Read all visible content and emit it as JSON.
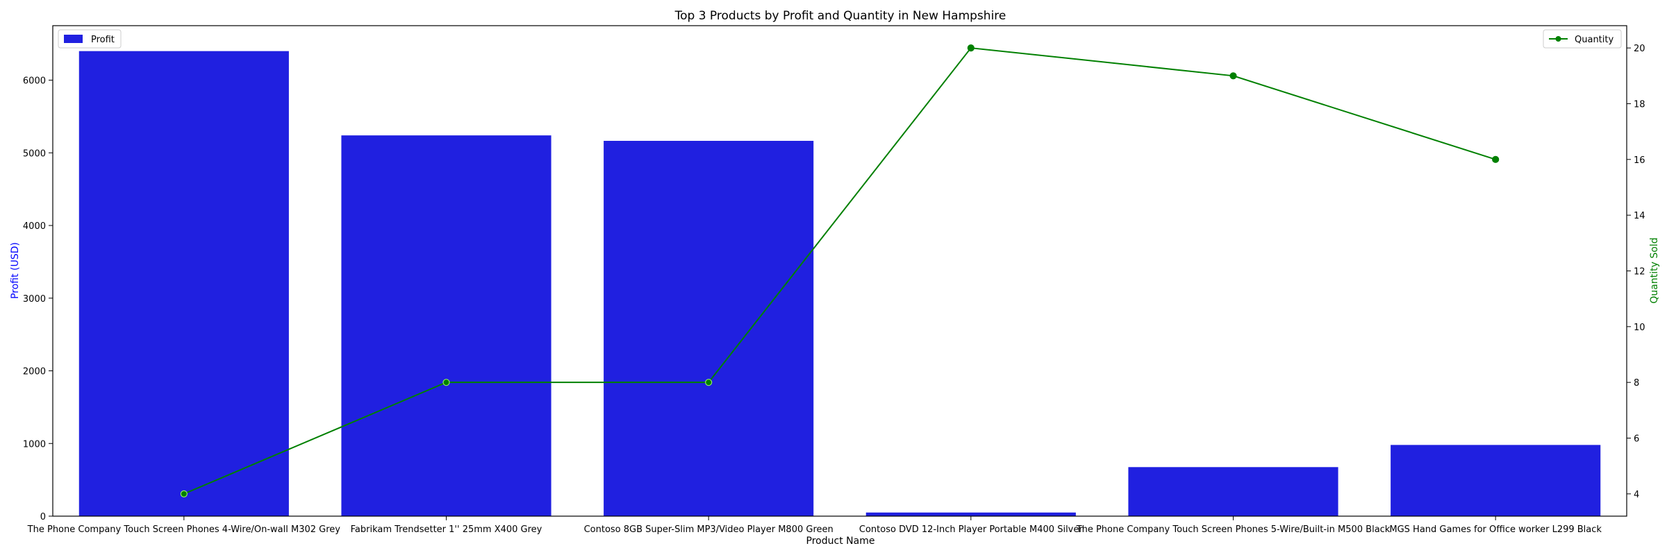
{
  "chart_data": {
    "type": "bar",
    "title": "Top 3 Products by Profit and Quantity in New Hampshire",
    "xlabel": "Product Name",
    "ylabel": "Profit (USD)",
    "y2label": "Quantity Sold",
    "categories": [
      "The Phone Company Touch Screen Phones 4-Wire/On-wall M302 Grey",
      "Fabrikam Trendsetter 1'' 25mm X400 Grey",
      "Contoso 8GB Super-Slim MP3/Video Player M800 Green",
      "Contoso DVD 12-Inch Player Portable M400 Silver",
      "The Phone Company Touch Screen Phones 5-Wire/Built-in M500 Black",
      "MGS Hand Games for Office worker L299 Black"
    ],
    "series": [
      {
        "name": "Profit",
        "axis": "left",
        "kind": "bar",
        "color": "#2020e0",
        "values": [
          6400,
          5240,
          5165,
          50,
          675,
          980
        ]
      },
      {
        "name": "Quantity",
        "axis": "right",
        "kind": "line",
        "color": "#008000",
        "values": [
          4,
          8,
          8,
          20,
          19,
          16
        ]
      }
    ],
    "ylim": [
      0,
      6750
    ],
    "y2lim": [
      3.2,
      20.8
    ],
    "yticks": [
      0,
      1000,
      2000,
      3000,
      4000,
      5000,
      6000
    ],
    "y2ticks": [
      4,
      6,
      8,
      10,
      12,
      14,
      16,
      18,
      20
    ],
    "grid": false,
    "legend_left_position": "top-left",
    "legend_right_position": "top-right"
  },
  "colors": {
    "bar": "#2020e0",
    "line": "#008000",
    "marker_edge_light": "#90ee60",
    "left_axis_label": "#0000ff",
    "right_axis_label": "#008000"
  }
}
